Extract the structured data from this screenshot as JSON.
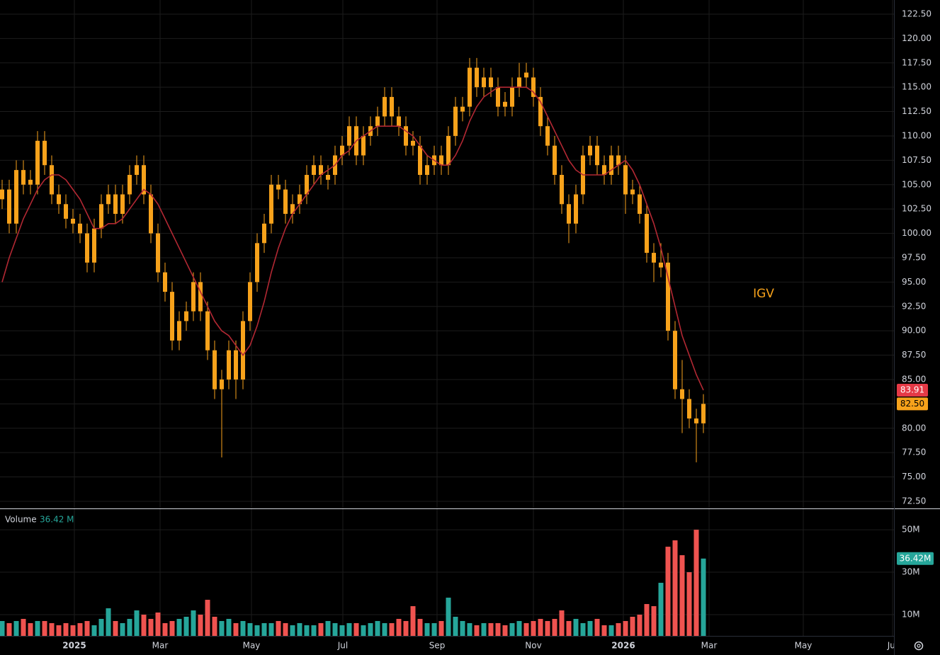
{
  "chart_data": [
    {
      "type": "candlestick",
      "title": "IGV",
      "color": "#f7a21b",
      "ma_color": "#b22833",
      "open": [
        103.5,
        104.5,
        101,
        106.5,
        105.5,
        105,
        109.5,
        107,
        104,
        103,
        101.5,
        101,
        100,
        97,
        100.5,
        103,
        104,
        102,
        104,
        106,
        107,
        104,
        100,
        96,
        94,
        89,
        91,
        92,
        95,
        92,
        88,
        84,
        85,
        88,
        85,
        91,
        95,
        99,
        101,
        105,
        104.5,
        102,
        103,
        104,
        106,
        107,
        105.5,
        106,
        108,
        109,
        111,
        108,
        110,
        111,
        112,
        114,
        112,
        111,
        109.5,
        109,
        106,
        107,
        108,
        107,
        110,
        112.5,
        113,
        117,
        115,
        116,
        115,
        113.5,
        113,
        115,
        116.5,
        116,
        114,
        111,
        109,
        106,
        103,
        101,
        104,
        108,
        109,
        107,
        106,
        108,
        107,
        104.5,
        104,
        102,
        98,
        96.5,
        97,
        90,
        84,
        83,
        81,
        80.5
      ],
      "high": [
        105.5,
        105.5,
        107.5,
        107.5,
        106.5,
        110.5,
        110.5,
        108,
        105,
        104,
        102.5,
        102,
        101,
        101.5,
        104,
        105,
        105,
        105,
        107,
        108,
        108,
        105,
        101,
        97,
        95,
        92,
        93,
        96,
        96,
        93,
        89,
        86,
        89,
        89,
        92,
        96,
        100,
        102,
        106,
        106,
        105.5,
        104,
        105,
        107,
        108,
        108,
        107,
        109,
        110,
        112,
        112,
        111,
        112,
        113,
        115,
        115,
        113,
        112,
        110.5,
        110,
        108,
        109,
        109,
        111,
        114,
        114,
        118,
        118,
        117,
        117,
        116,
        114.5,
        116,
        117.5,
        117.5,
        117,
        115,
        112,
        110,
        107,
        104,
        105,
        109,
        110,
        110,
        108,
        109,
        109,
        108,
        105.5,
        105,
        103,
        99,
        99,
        98,
        91,
        87,
        84,
        82,
        83.5
      ],
      "low": [
        102.5,
        100,
        100,
        104,
        104,
        104,
        106,
        103,
        102,
        100.5,
        100,
        99,
        96,
        96,
        99.5,
        102,
        101,
        101,
        103,
        105,
        103,
        99,
        95,
        93,
        88,
        88,
        90,
        91,
        91,
        87,
        83,
        77,
        84,
        83,
        84,
        90,
        94,
        98,
        100,
        103.5,
        101,
        101,
        102,
        103,
        105,
        105,
        104.5,
        105,
        107,
        108,
        107,
        107,
        109,
        110,
        111,
        111,
        110,
        108,
        108,
        105,
        105,
        106,
        106,
        106,
        109,
        111.5,
        112,
        114,
        114,
        114,
        112,
        112,
        112,
        114,
        115,
        113,
        110,
        108,
        105,
        102,
        99,
        100,
        103,
        107,
        106,
        105,
        105,
        106,
        102,
        103,
        101,
        97,
        95,
        95.5,
        89,
        83,
        79.5,
        80,
        76.5,
        79.5
      ],
      "close": [
        104.5,
        101,
        106.5,
        105,
        105,
        109.5,
        107,
        104,
        103,
        101.5,
        101,
        100,
        97,
        100.5,
        103,
        104,
        102,
        104,
        106,
        107,
        104,
        100,
        96,
        94,
        89,
        91,
        92,
        95,
        92,
        88,
        84,
        85,
        88,
        85,
        91,
        95,
        99,
        101,
        105,
        104.5,
        102,
        103,
        104,
        106,
        107,
        106,
        106,
        108,
        109,
        111,
        108,
        110,
        111,
        112,
        114,
        112,
        111,
        109,
        109,
        106,
        107,
        108,
        107,
        110,
        113,
        113,
        117,
        115,
        116,
        115,
        113,
        113,
        115,
        116,
        116,
        114,
        111,
        109,
        106,
        103,
        101,
        104,
        108,
        109,
        107,
        106,
        108,
        107,
        104,
        104,
        102,
        98,
        97,
        97,
        90,
        84,
        83,
        81,
        80.5,
        82.5
      ],
      "close_label": "82.50",
      "ma": [
        95,
        97.5,
        99.5,
        101.5,
        103,
        104.5,
        105.5,
        106,
        106,
        105.5,
        104.5,
        103.5,
        102,
        100.5,
        100.5,
        101,
        101,
        101.5,
        102.5,
        103.5,
        104.5,
        104,
        103,
        101.5,
        100,
        98.5,
        97,
        95.5,
        94,
        92.5,
        91,
        90,
        89.5,
        88.5,
        87.5,
        88.5,
        90.5,
        93,
        96,
        98.5,
        100.5,
        102,
        103,
        104,
        105,
        106,
        106.5,
        107,
        108,
        108.5,
        109.5,
        110,
        110.5,
        111,
        111,
        111,
        111,
        110.5,
        110,
        109,
        108,
        107.5,
        107,
        107,
        108,
        109.5,
        111.5,
        113,
        114,
        114.5,
        115,
        115,
        115,
        115,
        115,
        114.5,
        113.5,
        112,
        110.5,
        109,
        107.5,
        106.5,
        106,
        106,
        106,
        106,
        106.5,
        107,
        107.5,
        106.5,
        105,
        103,
        101,
        98.5,
        95.5,
        92.5,
        89.5,
        87.5,
        85.5,
        83.91
      ],
      "xlim": [
        -0.3,
        125.9
      ],
      "xticks": [
        {
          "value": 10.2,
          "label": "2025"
        },
        {
          "value": 22.3,
          "label": "Mar"
        },
        {
          "value": 35.2,
          "label": "May"
        },
        {
          "value": 48.1,
          "label": "Jul"
        },
        {
          "value": 61.4,
          "label": "Sep"
        },
        {
          "value": 75,
          "label": "Nov"
        },
        {
          "value": 87.7,
          "label": "2026"
        },
        {
          "value": 99.8,
          "label": "Mar"
        },
        {
          "value": 113.1,
          "label": "May"
        },
        {
          "value": 125.7,
          "label": "Jul"
        }
      ],
      "ylim": [
        71.77,
        123.95
      ],
      "yticks": [
        {
          "value": 72.5,
          "label": "72.50"
        },
        {
          "value": 75,
          "label": "75.00"
        },
        {
          "value": 77.5,
          "label": "77.50"
        },
        {
          "value": 80,
          "label": "80.00"
        },
        {
          "value": 82.5,
          "label": "82.50"
        },
        {
          "value": 85,
          "label": "85.00"
        },
        {
          "value": 87.5,
          "label": "87.50"
        },
        {
          "value": 90,
          "label": "90.00"
        },
        {
          "value": 92.5,
          "label": "92.50"
        },
        {
          "value": 95,
          "label": "95.00"
        },
        {
          "value": 97.5,
          "label": "97.50"
        },
        {
          "value": 100,
          "label": "100.00"
        },
        {
          "value": 102.5,
          "label": "102.50"
        },
        {
          "value": 105,
          "label": "105.00"
        },
        {
          "value": 107.5,
          "label": "107.50"
        },
        {
          "value": 110,
          "label": "110.00"
        },
        {
          "value": 112.5,
          "label": "112.50"
        },
        {
          "value": 115,
          "label": "115.00"
        },
        {
          "value": 117.5,
          "label": "117.50"
        },
        {
          "value": 120,
          "label": "120.00"
        },
        {
          "value": 122.5,
          "label": "122.50"
        }
      ],
      "grid": true
    },
    {
      "type": "bar",
      "title": "Volume",
      "up_color": "#26a69a",
      "down_color": "#ef5350",
      "values": [
        7,
        6,
        7,
        8,
        6,
        7,
        7,
        6,
        5,
        6,
        5,
        6,
        7,
        5,
        8,
        13,
        7,
        6,
        8,
        12,
        10,
        8,
        11,
        6,
        7,
        8,
        9,
        12,
        10,
        17,
        9,
        7,
        8,
        6,
        7,
        6,
        5,
        6,
        6,
        7,
        6,
        5,
        6,
        5,
        5,
        6,
        7,
        6,
        5,
        6,
        6,
        5,
        6,
        7,
        6,
        6,
        8,
        7,
        14,
        8,
        6,
        6,
        7,
        18,
        9,
        7,
        6,
        5,
        6,
        6,
        6,
        5,
        6,
        7,
        6,
        7,
        8,
        7,
        8,
        12,
        7,
        8,
        6,
        7,
        8,
        5,
        5,
        6,
        7,
        9,
        10,
        15,
        14,
        25,
        42,
        45,
        38,
        30,
        50,
        36.42
      ],
      "last_label": "36.42 M",
      "axis_label": "36.42M",
      "ylim": [
        0,
        59.7
      ],
      "yticks": [
        {
          "value": 10,
          "label": "10M"
        },
        {
          "value": 30,
          "label": "30M"
        },
        {
          "value": 50,
          "label": "50M"
        }
      ]
    }
  ]
}
